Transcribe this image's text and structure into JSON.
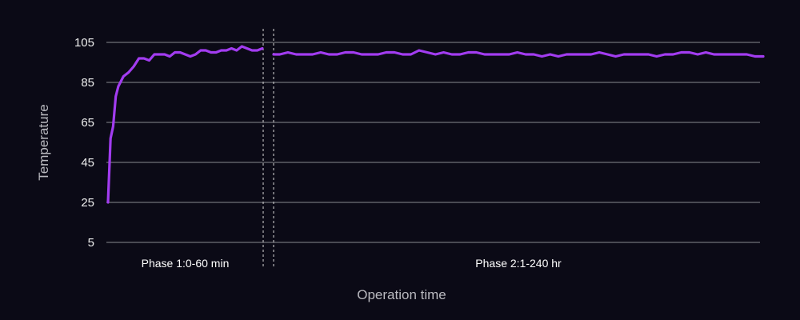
{
  "chart_data": {
    "type": "line",
    "xlabel": "Operation time",
    "ylabel": "Temperature",
    "ylim": [
      5,
      105
    ],
    "yticks": [
      5,
      25,
      45,
      65,
      85,
      105
    ],
    "grid": "horizontal",
    "line_color": "#a23cf0",
    "background_color": "#0b0a16",
    "segments": [
      {
        "label": "Phase 1:0-60 min",
        "x": [
          0,
          1,
          2,
          3,
          4,
          6,
          8,
          10,
          12,
          14,
          16,
          18,
          20,
          22,
          24,
          26,
          28,
          30,
          32,
          34,
          36,
          38,
          40,
          42,
          44,
          46,
          48,
          50,
          52,
          54,
          56,
          58,
          60
        ],
        "values": [
          25,
          57,
          63,
          78,
          83,
          88,
          90,
          93,
          97,
          97,
          96,
          99,
          99,
          99,
          98,
          100,
          100,
          99,
          98,
          99,
          101,
          101,
          100,
          100,
          101,
          101,
          102,
          101,
          103,
          102,
          101,
          101,
          102
        ]
      },
      {
        "label": "Phase 2:1-240 hr",
        "x": [
          1,
          4,
          8,
          12,
          16,
          20,
          24,
          28,
          32,
          36,
          40,
          44,
          48,
          52,
          56,
          60,
          64,
          68,
          72,
          76,
          80,
          84,
          88,
          92,
          96,
          100,
          104,
          108,
          112,
          116,
          120,
          124,
          128,
          132,
          136,
          140,
          144,
          148,
          152,
          156,
          160,
          164,
          168,
          172,
          176,
          180,
          184,
          188,
          192,
          196,
          200,
          204,
          208,
          212,
          216,
          220,
          224,
          228,
          232,
          236,
          240
        ],
        "values": [
          99,
          99,
          100,
          99,
          99,
          99,
          100,
          99,
          99,
          100,
          100,
          99,
          99,
          99,
          100,
          100,
          99,
          99,
          101,
          100,
          99,
          100,
          99,
          99,
          100,
          100,
          99,
          99,
          99,
          99,
          100,
          99,
          99,
          98,
          99,
          98,
          99,
          99,
          99,
          99,
          100,
          99,
          98,
          99,
          99,
          99,
          99,
          98,
          99,
          99,
          100,
          100,
          99,
          100,
          99,
          99,
          99,
          99,
          99,
          98,
          98
        ]
      }
    ]
  }
}
